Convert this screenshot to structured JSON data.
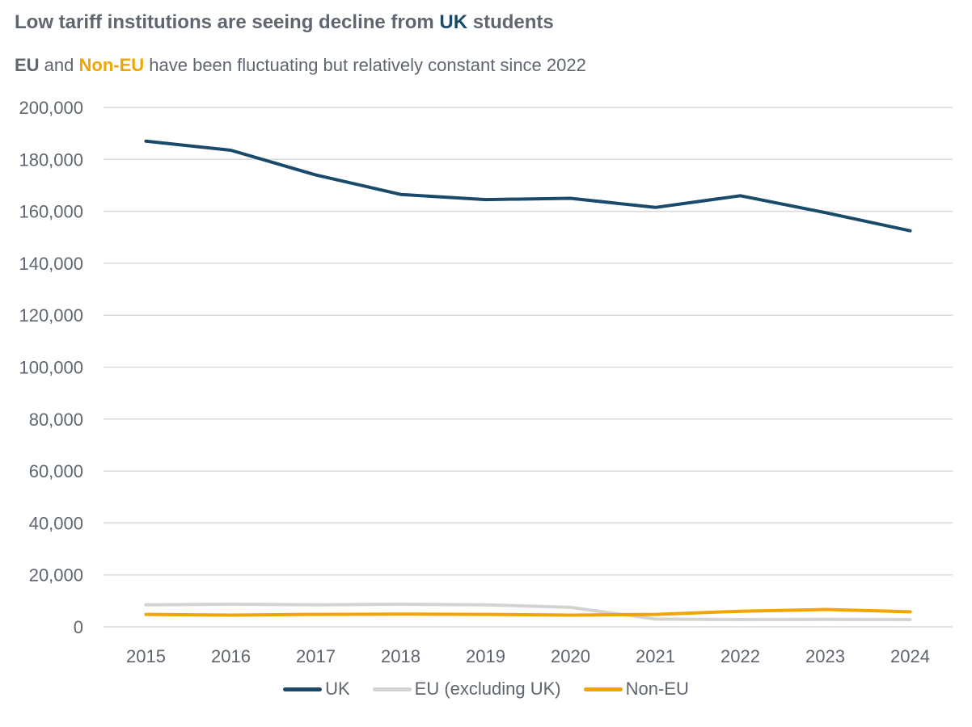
{
  "title_parts": {
    "pre": "Low tariff institutions are seeing decline from ",
    "highlight": "UK",
    "post": " students"
  },
  "subtitle_parts": {
    "eu": "EU",
    "and": " and ",
    "noneu": "Non-EU",
    "post": " have been fluctuating but relatively constant since 2022"
  },
  "chart_data": {
    "type": "line",
    "title": "Low tariff institutions are seeing decline from UK students",
    "subtitle": "EU and Non-EU have been fluctuating but relatively constant since 2022",
    "xlabel": "",
    "ylabel": "",
    "x": [
      "2015",
      "2016",
      "2017",
      "2018",
      "2019",
      "2020",
      "2021",
      "2022",
      "2023",
      "2024"
    ],
    "ylim": [
      0,
      200000
    ],
    "yticks": [
      0,
      20000,
      40000,
      60000,
      80000,
      100000,
      120000,
      140000,
      160000,
      180000,
      200000
    ],
    "ytick_labels": [
      "0",
      "20,000",
      "40,000",
      "60,000",
      "80,000",
      "100,000",
      "120,000",
      "140,000",
      "160,000",
      "180,000",
      "200,000"
    ],
    "grid": true,
    "legend_position": "bottom",
    "series": [
      {
        "name": "UK",
        "color": "#1a4a6b",
        "values": [
          187000,
          183500,
          174000,
          166500,
          164500,
          165000,
          161500,
          166000,
          159500,
          152500
        ]
      },
      {
        "name": "EU (excluding UK)",
        "color": "#d3d3d3",
        "values": [
          8500,
          8700,
          8500,
          8700,
          8500,
          7500,
          3000,
          2800,
          2900,
          2800
        ]
      },
      {
        "name": "Non-EU",
        "color": "#f0a500",
        "values": [
          4800,
          4500,
          4800,
          4900,
          4800,
          4500,
          4800,
          6000,
          6700,
          5800
        ]
      }
    ]
  }
}
